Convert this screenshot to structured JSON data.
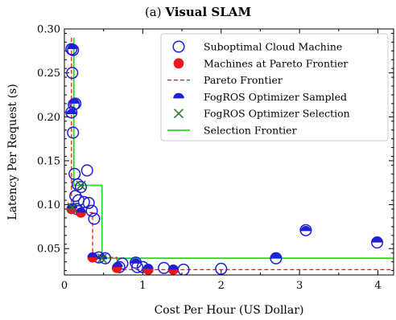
{
  "chart_data": {
    "type": "scatter",
    "title_prefix": "(a) ",
    "title_bold": "Visual SLAM",
    "xlabel": "Cost Per Hour (US Dollar)",
    "ylabel": "Latency Per Request (s)",
    "xlim": [
      0,
      4.2
    ],
    "ylim": [
      0.02,
      0.3
    ],
    "xticks": [
      0,
      1,
      2,
      3,
      4
    ],
    "xtick_labels": [
      "0",
      "1",
      "2",
      "3",
      "4"
    ],
    "yticks": [
      0.05,
      0.1,
      0.15,
      0.2,
      0.25,
      0.3
    ],
    "ytick_labels": [
      "0.05",
      "0.10",
      "0.15",
      "0.20",
      "0.25",
      "0.30"
    ],
    "legend_position": "upper-right",
    "colors": {
      "suboptimal": "#1f1fd6",
      "pareto_points": "#e8181c",
      "pareto_line": "#e8181c",
      "sampled": "#1f1fd6",
      "selection": "#2b7a2b",
      "selection_frontier": "#22dd22"
    },
    "series": [
      {
        "name": "Suboptimal Cloud Machine",
        "marker": "open-circle",
        "points": [
          [
            0.09,
            0.277
          ],
          [
            0.11,
            0.276
          ],
          [
            0.1,
            0.25
          ],
          [
            0.09,
            0.205
          ],
          [
            0.12,
            0.214
          ],
          [
            0.14,
            0.215
          ],
          [
            0.11,
            0.182
          ],
          [
            0.13,
            0.135
          ],
          [
            0.17,
            0.123
          ],
          [
            0.21,
            0.12
          ],
          [
            0.14,
            0.11
          ],
          [
            0.18,
            0.105
          ],
          [
            0.25,
            0.103
          ],
          [
            0.31,
            0.102
          ],
          [
            0.29,
            0.139
          ],
          [
            0.35,
            0.093
          ],
          [
            0.38,
            0.084
          ],
          [
            0.16,
            0.095
          ],
          [
            0.44,
            0.04
          ],
          [
            0.52,
            0.039
          ],
          [
            0.7,
            0.029
          ],
          [
            0.74,
            0.033
          ],
          [
            0.91,
            0.034
          ],
          [
            0.93,
            0.029
          ],
          [
            1.0,
            0.029
          ],
          [
            1.27,
            0.028
          ],
          [
            1.52,
            0.026
          ],
          [
            2.0,
            0.027
          ],
          [
            2.7,
            0.039
          ],
          [
            3.08,
            0.071
          ],
          [
            3.99,
            0.057
          ]
        ]
      },
      {
        "name": "Machines at Pareto Frontier",
        "marker": "filled-circle",
        "points": [
          [
            0.09,
            0.095
          ],
          [
            0.21,
            0.091
          ],
          [
            0.36,
            0.04
          ],
          [
            0.67,
            0.028
          ],
          [
            1.07,
            0.026
          ],
          [
            1.39,
            0.026
          ]
        ]
      },
      {
        "name": "Pareto Frontier",
        "marker": "dashed-line",
        "points": [
          [
            0.09,
            0.29
          ],
          [
            0.09,
            0.091
          ],
          [
            0.36,
            0.091
          ],
          [
            0.36,
            0.04
          ],
          [
            0.67,
            0.04
          ],
          [
            0.67,
            0.026
          ],
          [
            4.2,
            0.026
          ]
        ]
      },
      {
        "name": "FogROS Optimizer Sampled",
        "marker": "half-filled-circle",
        "points": [
          [
            0.1,
            0.277
          ],
          [
            0.09,
            0.203
          ],
          [
            0.13,
            0.215
          ],
          [
            0.1,
            0.096
          ],
          [
            0.21,
            0.091
          ],
          [
            0.36,
            0.04
          ],
          [
            0.48,
            0.038
          ],
          [
            0.68,
            0.029
          ],
          [
            0.91,
            0.033
          ],
          [
            1.07,
            0.027
          ],
          [
            1.39,
            0.026
          ],
          [
            2.7,
            0.039
          ],
          [
            3.08,
            0.07
          ],
          [
            3.99,
            0.057
          ]
        ]
      },
      {
        "name": "FogROS Optimizer Selection",
        "marker": "x",
        "points": [
          [
            0.1,
            0.097
          ],
          [
            0.21,
            0.122
          ],
          [
            0.48,
            0.039
          ]
        ]
      },
      {
        "name": "Selection Frontier",
        "marker": "solid-line",
        "points": [
          [
            0.12,
            0.29
          ],
          [
            0.12,
            0.122
          ],
          [
            0.48,
            0.122
          ],
          [
            0.48,
            0.039
          ],
          [
            4.2,
            0.039
          ]
        ]
      }
    ]
  }
}
